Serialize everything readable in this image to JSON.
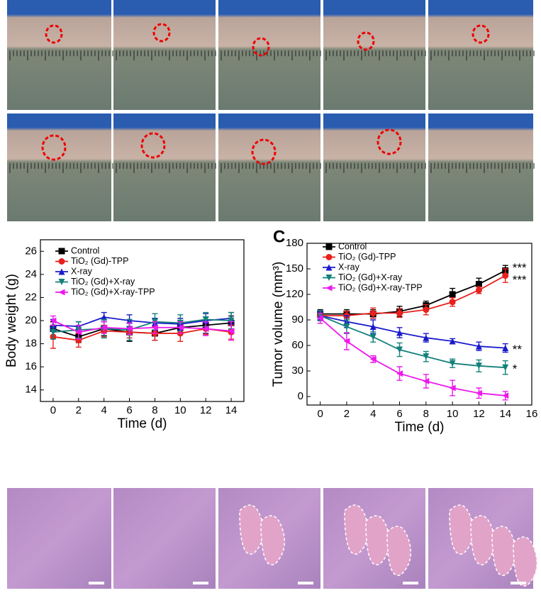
{
  "chart_data": [
    {
      "type": "line",
      "ylabel": "Body weight (g)",
      "xlabel": "Time (d)",
      "x": [
        0,
        2,
        4,
        6,
        8,
        10,
        12,
        14
      ],
      "xlim": [
        -1,
        15
      ],
      "xticks": [
        0,
        2,
        4,
        6,
        8,
        10,
        12,
        14
      ],
      "ylim": [
        13,
        27
      ],
      "yticks": [
        14,
        16,
        18,
        20,
        22,
        24,
        26
      ],
      "series": [
        {
          "name": "Control",
          "color": "#000000",
          "marker": "square",
          "values": [
            19.3,
            18.6,
            19.3,
            19.0,
            18.9,
            19.4,
            19.6,
            19.8
          ],
          "errors": [
            0.6,
            0.5,
            0.6,
            0.8,
            0.6,
            0.6,
            0.7,
            0.6
          ]
        },
        {
          "name": "TiO₂ (Gd)-TPP",
          "color": "#e8211c",
          "marker": "circle",
          "values": [
            18.6,
            18.3,
            19.1,
            19.0,
            18.9,
            18.9,
            19.3,
            19.0
          ],
          "errors": [
            1.0,
            0.6,
            0.5,
            0.5,
            0.6,
            0.7,
            0.5,
            0.6
          ]
        },
        {
          "name": "X-ray",
          "color": "#1a1acc",
          "marker": "triangle-up",
          "values": [
            19.6,
            19.5,
            20.3,
            20.0,
            19.8,
            19.7,
            20.0,
            20.2
          ],
          "errors": [
            0.5,
            0.4,
            0.4,
            0.5,
            0.4,
            0.5,
            0.6,
            0.5
          ]
        },
        {
          "name": "TiO₂ (Gd)+X-ray",
          "color": "#13807a",
          "marker": "triangle-down",
          "values": [
            19.0,
            19.2,
            19.3,
            19.2,
            19.9,
            19.8,
            20.1,
            20.0
          ],
          "errors": [
            0.6,
            0.7,
            0.8,
            0.9,
            0.7,
            0.7,
            0.6,
            0.7
          ]
        },
        {
          "name": "TiO₂ (Gd)+X-ray-TPP",
          "color": "#ee18ee",
          "marker": "triangle-left",
          "values": [
            20.0,
            19.0,
            19.4,
            19.3,
            19.4,
            19.4,
            19.3,
            19.1
          ],
          "errors": [
            0.4,
            0.6,
            0.5,
            0.5,
            0.5,
            0.5,
            0.6,
            0.8
          ]
        }
      ]
    },
    {
      "type": "line",
      "panel": "C",
      "ylabel": "Tumor volume (mm³)",
      "xlabel": "Time (d)",
      "x": [
        0,
        2,
        4,
        6,
        8,
        10,
        12,
        14
      ],
      "xlim": [
        -1,
        16
      ],
      "xticks": [
        0,
        2,
        4,
        6,
        8,
        10,
        12,
        14,
        16
      ],
      "ylim": [
        -10,
        180
      ],
      "yticks": [
        0,
        30,
        60,
        90,
        120,
        150,
        180
      ],
      "series": [
        {
          "name": "Control",
          "color": "#000000",
          "marker": "square",
          "values": [
            97,
            97,
            97,
            100,
            107,
            120,
            132,
            148
          ],
          "errors": [
            5,
            5,
            5,
            6,
            5,
            7,
            7,
            6
          ]
        },
        {
          "name": "TiO₂ (Gd)-TPP",
          "color": "#e8211c",
          "marker": "circle",
          "values": [
            95,
            95,
            98,
            98,
            102,
            111,
            125,
            142
          ],
          "errors": [
            5,
            5,
            6,
            5,
            6,
            5,
            4,
            8
          ]
        },
        {
          "name": "X-ray",
          "color": "#1a1acc",
          "marker": "triangle-up",
          "values": [
            95,
            88,
            82,
            75,
            69,
            65,
            59,
            57
          ],
          "errors": [
            5,
            7,
            8,
            6,
            5,
            3,
            5,
            5
          ]
        },
        {
          "name": "TiO₂ (Gd)+X-ray",
          "color": "#13807a",
          "marker": "triangle-down",
          "values": [
            95,
            82,
            70,
            55,
            47,
            39,
            36,
            34
          ],
          "errors": [
            6,
            8,
            6,
            8,
            6,
            5,
            7,
            8
          ]
        },
        {
          "name": "TiO₂ (Gd)+X-ray-TPP",
          "color": "#ee18ee",
          "marker": "triangle-left",
          "values": [
            92,
            65,
            44,
            27,
            18,
            10,
            4,
            1
          ],
          "errors": [
            6,
            10,
            4,
            8,
            8,
            9,
            6,
            5
          ]
        }
      ],
      "annotations": [
        "***",
        "***",
        "**",
        "*"
      ]
    }
  ]
}
